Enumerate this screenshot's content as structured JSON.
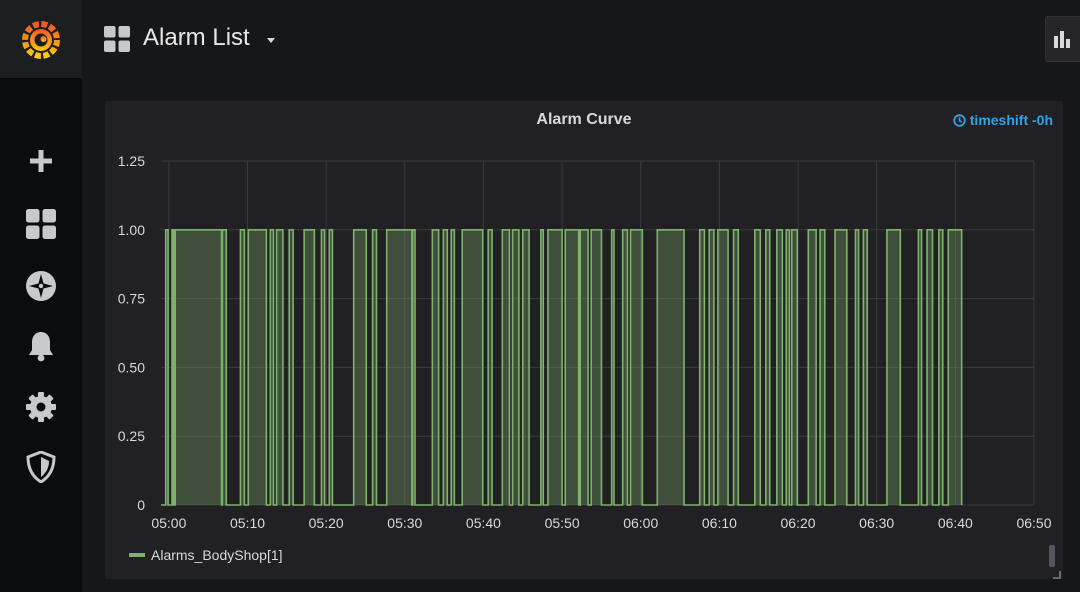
{
  "dashboard": {
    "title": "Alarm List"
  },
  "sidebar": {
    "icons": [
      "grafana-logo-icon",
      "plus-icon",
      "dashboards-icon",
      "explore-compass-icon",
      "bell-icon",
      "gear-icon",
      "shield-icon"
    ]
  },
  "toolbar": {
    "graph_button_icon": "bar-chart-icon"
  },
  "panel": {
    "title": "Alarm Curve",
    "timeshift_label": "timeshift -0h"
  },
  "colors": {
    "series": "#7eb26d",
    "accent": "#33a2e5",
    "background": "#161719",
    "panel": "#212124"
  },
  "chart_data": {
    "type": "line",
    "title": "Alarm Curve",
    "fill": true,
    "step": true,
    "grid": true,
    "legend": "bottom-left",
    "x_domain": [
      "04:59",
      "06:50"
    ],
    "xticks": [
      "05:00",
      "05:10",
      "05:20",
      "05:30",
      "05:40",
      "05:50",
      "06:00",
      "06:10",
      "06:20",
      "06:30",
      "06:40",
      "06:50"
    ],
    "yticks": [
      "0",
      "0.25",
      "0.50",
      "0.75",
      "1.00",
      "1.25"
    ],
    "ylim": [
      0,
      1.25
    ],
    "series": [
      {
        "name": "Alarms_BodyShop[1]",
        "color": "#7eb26d",
        "on_intervals": [
          [
            "04:59.6",
            "04:59.9"
          ],
          [
            "05:00.4",
            "05:00.8"
          ],
          [
            "05:00.6",
            "05:06.8"
          ],
          [
            "05:06.7",
            "05:07.3"
          ],
          [
            "05:09.1",
            "05:09.6"
          ],
          [
            "05:10.1",
            "05:12.4"
          ],
          [
            "05:12.9",
            "05:13.3"
          ],
          [
            "05:13.7",
            "05:14.5"
          ],
          [
            "05:15.3",
            "05:15.8"
          ],
          [
            "05:17.2",
            "05:18.5"
          ],
          [
            "05:19.4",
            "05:19.8"
          ],
          [
            "05:20.4",
            "05:20.8"
          ],
          [
            "05:23.5",
            "05:25.1"
          ],
          [
            "05:25.9",
            "05:26.4"
          ],
          [
            "05:27.7",
            "05:30.9"
          ],
          [
            "05:31.0",
            "05:31.3"
          ],
          [
            "05:33.5",
            "05:34.3"
          ],
          [
            "05:34.9",
            "05:35.4"
          ],
          [
            "05:35.9",
            "05:36.3"
          ],
          [
            "05:37.3",
            "05:39.9"
          ],
          [
            "05:40.6",
            "05:41.1"
          ],
          [
            "05:42.4",
            "05:43.3"
          ],
          [
            "05:43.7",
            "05:44.5"
          ],
          [
            "05:45.0",
            "05:45.8"
          ],
          [
            "05:47.3",
            "05:47.6"
          ],
          [
            "05:48.2",
            "05:50.0"
          ],
          [
            "05:50.4",
            "05:52.1"
          ],
          [
            "05:52.3",
            "05:53.3"
          ],
          [
            "05:53.7",
            "05:55.0"
          ],
          [
            "05:56.3",
            "05:56.6"
          ],
          [
            "05:57.7",
            "05:58.3"
          ],
          [
            "05:58.7",
            "06:00.2"
          ],
          [
            "06:02.1",
            "06:05.5"
          ],
          [
            "06:07.5",
            "06:08.1"
          ],
          [
            "06:08.7",
            "06:09.3"
          ],
          [
            "06:09.8",
            "06:11.1"
          ],
          [
            "06:11.8",
            "06:12.4"
          ],
          [
            "06:14.5",
            "06:15.2"
          ],
          [
            "06:15.9",
            "06:16.4"
          ],
          [
            "06:17.3",
            "06:18.0"
          ],
          [
            "06:18.5",
            "06:18.9"
          ],
          [
            "06:19.2",
            "06:19.9"
          ],
          [
            "06:21.3",
            "06:22.3"
          ],
          [
            "06:22.8",
            "06:23.4"
          ],
          [
            "06:24.7",
            "06:26.2"
          ],
          [
            "06:27.3",
            "06:27.7"
          ],
          [
            "06:28.3",
            "06:28.8"
          ],
          [
            "06:31.3",
            "06:33.0"
          ],
          [
            "06:35.3",
            "06:35.7"
          ],
          [
            "06:36.4",
            "06:37.1"
          ],
          [
            "06:37.9",
            "06:38.4"
          ],
          [
            "06:39.1",
            "06:40.8"
          ]
        ]
      }
    ]
  }
}
